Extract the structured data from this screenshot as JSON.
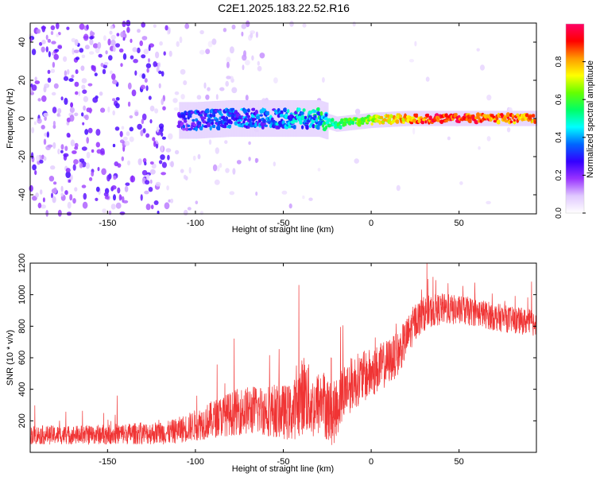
{
  "title": "C2E1.2025.183.22.52.R16",
  "chart_data": [
    {
      "type": "heatmap",
      "xlabel": "Height of straight line (km)",
      "ylabel": "Frequency (Hz)",
      "xlim": [
        -194,
        94
      ],
      "ylim": [
        -50,
        50
      ],
      "x_ticks": [
        -150,
        -100,
        -50,
        0,
        50
      ],
      "y_ticks": [
        -40,
        -20,
        0,
        20,
        40
      ],
      "colorbar": {
        "label": "Normalized spectral amplitude",
        "range": [
          0,
          1
        ],
        "ticks": [
          0,
          0.2,
          0.4,
          0.6,
          0.8
        ],
        "colormap": [
          "#ffffff",
          "#e0c8ff",
          "#9933ff",
          "#3300ff",
          "#0066ff",
          "#00ffff",
          "#00ff66",
          "#66ff00",
          "#ffff00",
          "#ff9900",
          "#ff0000",
          "#ff0066"
        ]
      },
      "ridge": [
        {
          "x": -110,
          "y": -1,
          "amp": 0.25
        },
        {
          "x": -100,
          "y": -1,
          "amp": 0.3
        },
        {
          "x": -80,
          "y": 0,
          "amp": 0.35
        },
        {
          "x": -60,
          "y": 0,
          "amp": 0.35
        },
        {
          "x": -40,
          "y": 0,
          "amp": 0.4
        },
        {
          "x": -30,
          "y": 0,
          "amp": 0.45
        },
        {
          "x": -20,
          "y": -3,
          "amp": 0.55
        },
        {
          "x": -10,
          "y": -2,
          "amp": 0.6
        },
        {
          "x": 0,
          "y": -1,
          "amp": 0.7
        },
        {
          "x": 20,
          "y": 0,
          "amp": 0.8
        },
        {
          "x": 40,
          "y": 0,
          "amp": 0.95
        },
        {
          "x": 60,
          "y": 0,
          "amp": 0.9
        },
        {
          "x": 80,
          "y": 0,
          "amp": 0.85
        },
        {
          "x": 94,
          "y": 0,
          "amp": 0.8
        }
      ]
    },
    {
      "type": "line",
      "xlabel": "Height of straight line (km)",
      "ylabel": "SNR (10 * v/v)",
      "xlim": [
        -194,
        94
      ],
      "ylim": [
        0,
        1200
      ],
      "x_ticks": [
        -150,
        -100,
        -50,
        0,
        50
      ],
      "y_ticks": [
        200,
        400,
        600,
        800,
        1000,
        1200
      ],
      "series": [
        {
          "color": "#f03434",
          "x": [
            -194,
            -170,
            -150,
            -130,
            -115,
            -105,
            -95,
            -85,
            -75,
            -65,
            -55,
            -45,
            -38,
            -33,
            -28,
            -22,
            -15,
            -8,
            0,
            8,
            15,
            20,
            25,
            30,
            40,
            50,
            60,
            70,
            80,
            94
          ],
          "y": [
            110,
            110,
            115,
            120,
            125,
            155,
            190,
            230,
            260,
            270,
            265,
            250,
            380,
            280,
            330,
            230,
            400,
            460,
            500,
            560,
            620,
            720,
            830,
            880,
            910,
            900,
            890,
            860,
            840,
            820
          ],
          "spread": [
            60,
            60,
            65,
            70,
            75,
            90,
            110,
            130,
            150,
            160,
            170,
            180,
            260,
            200,
            220,
            200,
            180,
            170,
            160,
            150,
            140,
            130,
            120,
            110,
            100,
            95,
            90,
            90,
            85,
            85
          ]
        }
      ]
    }
  ]
}
